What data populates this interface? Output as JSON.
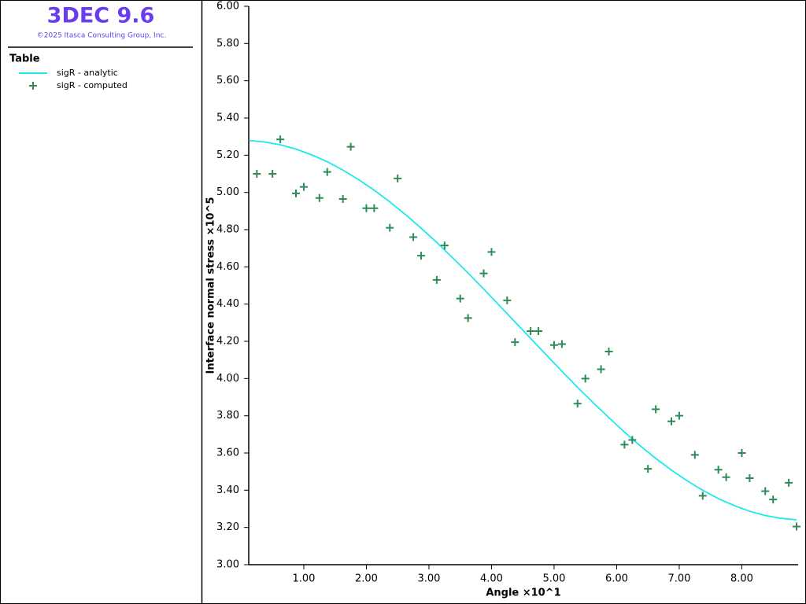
{
  "chart_data": {
    "type": "scatter-line",
    "title": "3DEC 9.6",
    "subtitle": "©2025 Itasca Consulting Group, Inc.",
    "legend_title": "Table",
    "x_label": "Angle ×10^1",
    "y_label": "Interface normal stress ×10^5",
    "xlim": [
      0.12,
      8.9
    ],
    "ylim": [
      3.0,
      6.0
    ],
    "xticks": [
      {
        "value": 1,
        "label": "1.00"
      },
      {
        "value": 2,
        "label": "2.00"
      },
      {
        "value": 3,
        "label": "3.00"
      },
      {
        "value": 4,
        "label": "4.00"
      },
      {
        "value": 5,
        "label": "5.00"
      },
      {
        "value": 6,
        "label": "6.00"
      },
      {
        "value": 7,
        "label": "7.00"
      },
      {
        "value": 8,
        "label": "8.00"
      }
    ],
    "yticks": [
      {
        "value": 3.0,
        "label": "3.00"
      },
      {
        "value": 3.2,
        "label": "3.20"
      },
      {
        "value": 3.4,
        "label": "3.40"
      },
      {
        "value": 3.6,
        "label": "3.60"
      },
      {
        "value": 3.8,
        "label": "3.80"
      },
      {
        "value": 4.0,
        "label": "4.00"
      },
      {
        "value": 4.2,
        "label": "4.20"
      },
      {
        "value": 4.4,
        "label": "4.40"
      },
      {
        "value": 4.6,
        "label": "4.60"
      },
      {
        "value": 4.8,
        "label": "4.80"
      },
      {
        "value": 5.0,
        "label": "5.00"
      },
      {
        "value": 5.2,
        "label": "5.20"
      },
      {
        "value": 5.4,
        "label": "5.40"
      },
      {
        "value": 5.6,
        "label": "5.60"
      },
      {
        "value": 5.8,
        "label": "5.80"
      },
      {
        "value": 6.0,
        "label": "6.00"
      }
    ],
    "series": [
      {
        "name": "sigR - analytic",
        "style": "line",
        "color": "#1ee8ee",
        "x": [
          0.125,
          0.375,
          0.625,
          0.875,
          1.125,
          1.375,
          1.625,
          1.875,
          2.125,
          2.375,
          2.625,
          2.875,
          3.125,
          3.375,
          3.625,
          3.875,
          4.125,
          4.375,
          4.625,
          4.875,
          5.125,
          5.375,
          5.625,
          5.875,
          6.125,
          6.375,
          6.625,
          6.875,
          7.125,
          7.375,
          7.625,
          7.875,
          8.125,
          8.375,
          8.625,
          8.875
        ],
        "values": [
          5.279,
          5.271,
          5.256,
          5.233,
          5.202,
          5.165,
          5.12,
          5.069,
          5.012,
          4.949,
          4.881,
          4.808,
          4.731,
          4.65,
          4.567,
          4.481,
          4.393,
          4.304,
          4.216,
          4.127,
          4.039,
          3.953,
          3.87,
          3.79,
          3.712,
          3.639,
          3.571,
          3.508,
          3.451,
          3.4,
          3.355,
          3.318,
          3.287,
          3.264,
          3.249,
          3.241
        ]
      },
      {
        "name": "sigR - computed",
        "style": "cross",
        "color": "#2e8b57",
        "x": [
          0.25,
          0.5,
          0.625,
          0.875,
          1.0,
          1.25,
          1.375,
          1.625,
          1.75,
          2.0,
          2.125,
          2.375,
          2.5,
          2.75,
          2.875,
          3.125,
          3.25,
          3.5,
          3.625,
          3.875,
          4.0,
          4.25,
          4.375,
          4.625,
          4.75,
          5.0,
          5.125,
          5.375,
          5.5,
          5.75,
          5.875,
          6.125,
          6.25,
          6.5,
          6.625,
          6.875,
          7.0,
          7.25,
          7.375,
          7.625,
          7.75,
          8.0,
          8.125,
          8.375,
          8.5,
          8.75,
          8.875
        ],
        "values": [
          5.1,
          5.1,
          5.285,
          4.995,
          5.03,
          4.97,
          5.11,
          4.965,
          5.245,
          4.915,
          4.915,
          4.81,
          5.075,
          4.76,
          4.66,
          4.53,
          4.715,
          4.43,
          4.325,
          4.565,
          4.68,
          4.42,
          4.195,
          4.255,
          4.255,
          4.18,
          4.185,
          3.865,
          4.0,
          4.05,
          4.145,
          3.645,
          3.67,
          3.515,
          3.835,
          3.77,
          3.8,
          3.59,
          3.37,
          3.51,
          3.47,
          3.6,
          3.465,
          3.395,
          3.35,
          3.44,
          3.205
        ]
      }
    ]
  }
}
